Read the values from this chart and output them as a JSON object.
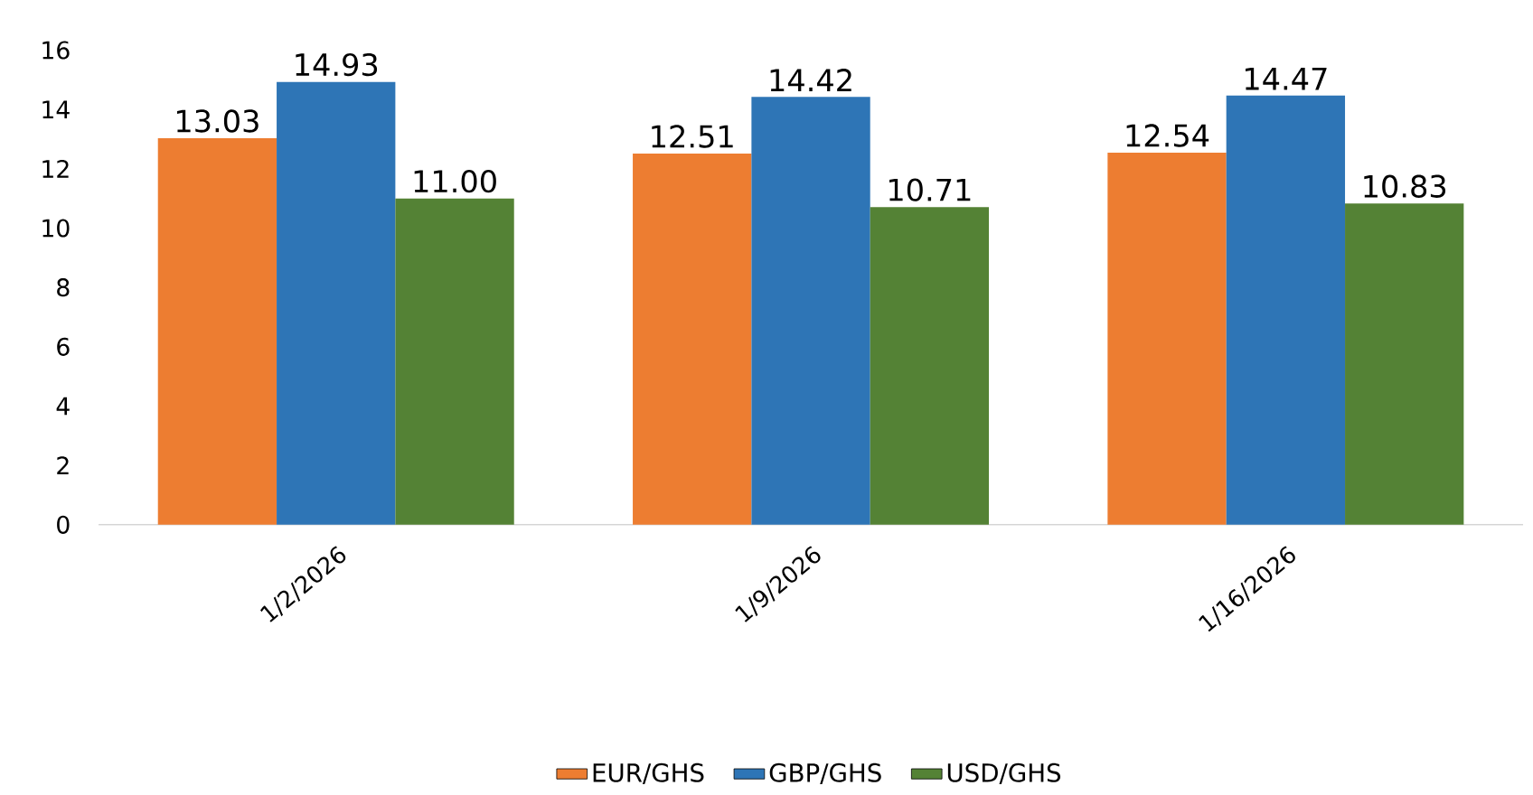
{
  "chart_data": {
    "type": "bar",
    "categories": [
      "1/2/2026",
      "1/9/2026",
      "1/16/2026"
    ],
    "series": [
      {
        "name": "EUR/GHS",
        "color": "#ed7d31",
        "values": [
          13.03,
          12.51,
          12.54
        ],
        "value_labels": [
          "13.03",
          "12.51",
          "12.54"
        ]
      },
      {
        "name": "GBP/GHS",
        "color": "#2e75b6",
        "values": [
          14.93,
          14.42,
          14.47
        ],
        "value_labels": [
          "14.93",
          "14.42",
          "14.47"
        ]
      },
      {
        "name": "USD/GHS",
        "color": "#548235",
        "values": [
          11.0,
          10.71,
          10.83
        ],
        "value_labels": [
          "11.00",
          "10.71",
          "10.83"
        ]
      }
    ],
    "ylim": [
      0,
      16
    ],
    "yticks": [
      0,
      2,
      4,
      6,
      8,
      10,
      12,
      14,
      16
    ],
    "grid": false,
    "legend": "bottom"
  }
}
